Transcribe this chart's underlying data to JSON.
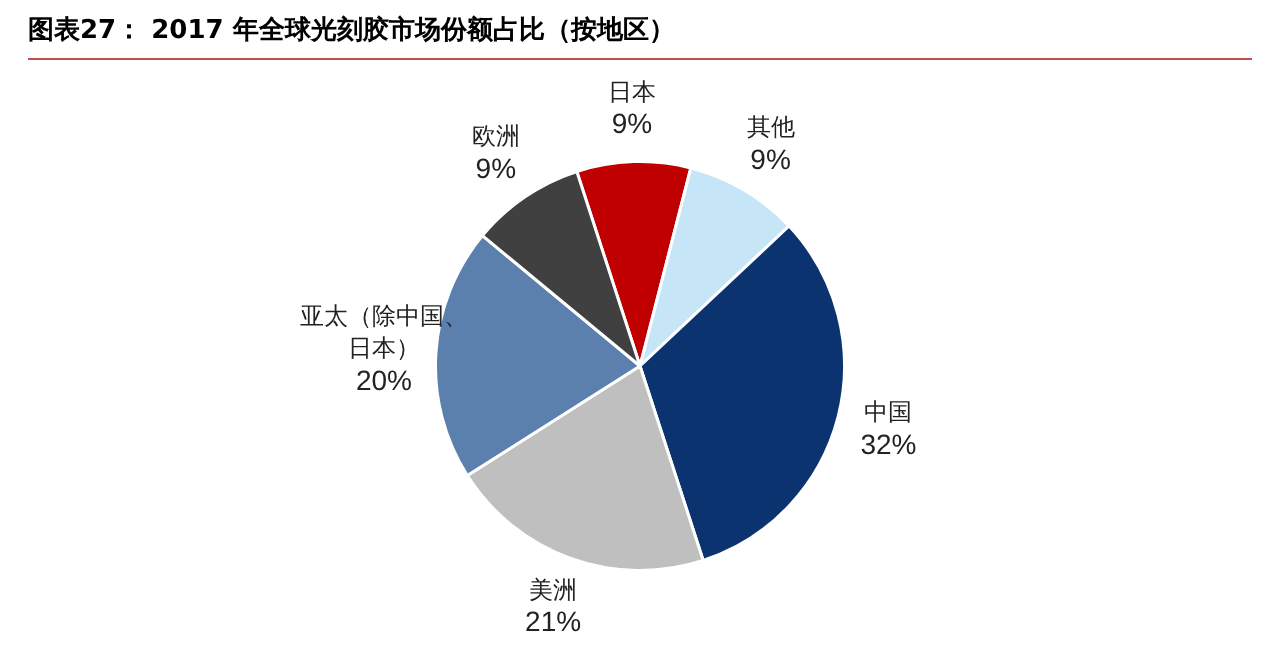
{
  "chart_data": {
    "type": "pie",
    "title": "图表27：  2017 年全球光刻胶市场份额占比（按地区）",
    "categories": [
      "日本",
      "其他",
      "中国",
      "美洲",
      "亚太（除中国、日本）",
      "欧洲"
    ],
    "values": [
      9,
      9,
      32,
      21,
      20,
      9
    ],
    "colors": [
      "#c00000",
      "#c6e6f8",
      "#0a3370",
      "#bfbfbf",
      "#5b80ae",
      "#404040"
    ],
    "value_labels": [
      "9%",
      "9%",
      "32%",
      "21%",
      "20%",
      "9%"
    ],
    "legend": false
  }
}
